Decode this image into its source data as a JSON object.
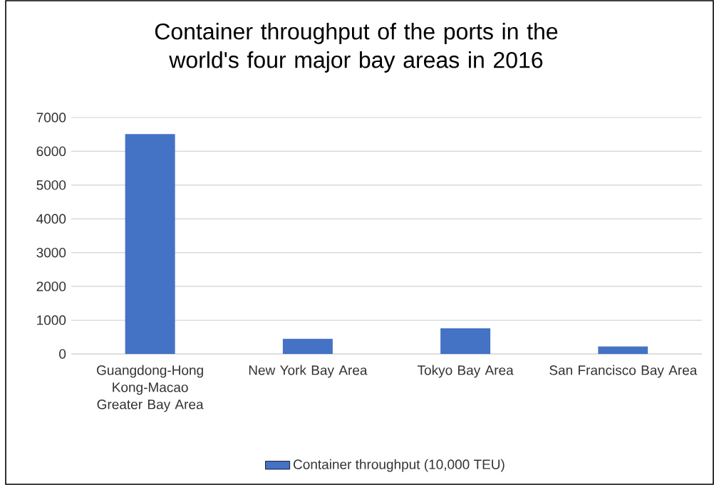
{
  "chart_data": {
    "type": "bar",
    "title": "Container throughput of the ports in the world's four major bay areas in 2016",
    "categories": [
      "Guangdong-Hong Kong-Macao Greater Bay Area",
      "New York Bay Area",
      "Tokyo Bay Area",
      "San Francisco Bay Area"
    ],
    "series": [
      {
        "name": "Container throughput (10,000 TEU)",
        "color": "#4472c4",
        "values": [
          6510,
          450,
          760,
          220
        ]
      }
    ],
    "ylim": [
      0,
      7000
    ],
    "yticks": [
      0,
      1000,
      2000,
      3000,
      4000,
      5000,
      6000,
      7000
    ],
    "grid": "y",
    "legend": "bottom"
  }
}
